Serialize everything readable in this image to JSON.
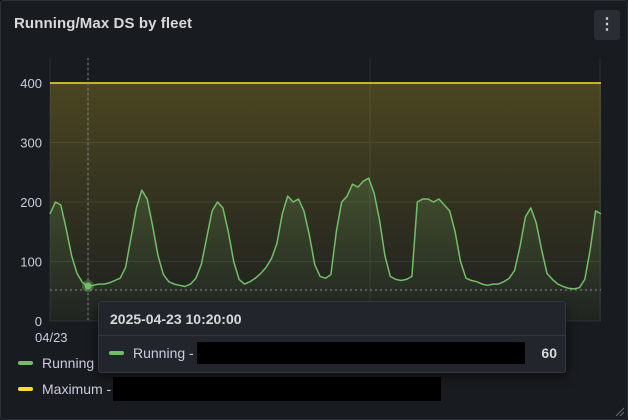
{
  "panel": {
    "title": "Running/Max DS by fleet",
    "menu_icon": "kebab-menu-icon",
    "menu_glyph": "⋮"
  },
  "chart_data": {
    "type": "line",
    "ylim": [
      0,
      400
    ],
    "y_ticks": [
      "0",
      "100",
      "200",
      "300",
      "400"
    ],
    "x_tick_label": "04/23",
    "series": [
      {
        "name": "Running",
        "color": "#73bf69",
        "values": [
          180,
          200,
          195,
          155,
          110,
          80,
          65,
          58,
          60,
          62,
          62,
          64,
          68,
          72,
          90,
          140,
          190,
          220,
          205,
          160,
          110,
          78,
          66,
          62,
          60,
          58,
          62,
          72,
          95,
          140,
          185,
          200,
          190,
          150,
          100,
          70,
          62,
          66,
          72,
          80,
          90,
          105,
          130,
          180,
          210,
          200,
          205,
          185,
          145,
          95,
          75,
          72,
          78,
          150,
          200,
          210,
          230,
          225,
          235,
          240,
          215,
          170,
          110,
          75,
          70,
          68,
          70,
          75,
          200,
          205,
          205,
          200,
          205,
          195,
          185,
          150,
          100,
          72,
          68,
          66,
          62,
          60,
          62,
          62,
          66,
          72,
          85,
          125,
          175,
          190,
          165,
          120,
          80,
          70,
          62,
          58,
          55,
          54,
          56,
          70,
          120,
          185,
          180
        ],
        "color_key": "green"
      },
      {
        "name": "Maximum",
        "color": "#fade2a",
        "values": [
          400,
          400,
          400,
          400,
          400,
          400,
          400,
          400,
          400,
          400,
          400,
          400,
          400,
          400,
          400,
          400,
          400,
          400,
          400,
          400,
          400,
          400,
          400,
          400,
          400,
          400,
          400,
          400,
          400,
          400,
          400,
          400,
          400,
          400,
          400,
          400,
          400,
          400,
          400,
          400,
          400,
          400,
          400,
          400,
          400,
          400,
          400,
          400,
          400,
          400,
          400,
          400,
          400,
          400,
          400,
          400,
          400,
          400,
          400,
          400,
          400,
          400,
          400,
          400,
          400,
          400,
          400,
          400,
          400,
          400,
          400,
          400,
          400,
          400,
          400,
          400,
          400,
          400,
          400,
          400,
          400,
          400,
          400,
          400,
          400,
          400,
          400,
          400,
          400,
          400,
          400,
          400,
          400,
          400,
          400,
          400,
          400,
          400,
          400,
          400,
          400,
          400,
          400
        ]
      }
    ],
    "hover_value": 60
  },
  "legend": {
    "items": [
      {
        "label": "Running",
        "color": "#73bf69"
      },
      {
        "label": "Maximum -",
        "color": "#fade2a"
      }
    ]
  },
  "tooltip": {
    "time": "2025-04-23 10:20:00",
    "series_label": "Running -",
    "value": "60"
  }
}
